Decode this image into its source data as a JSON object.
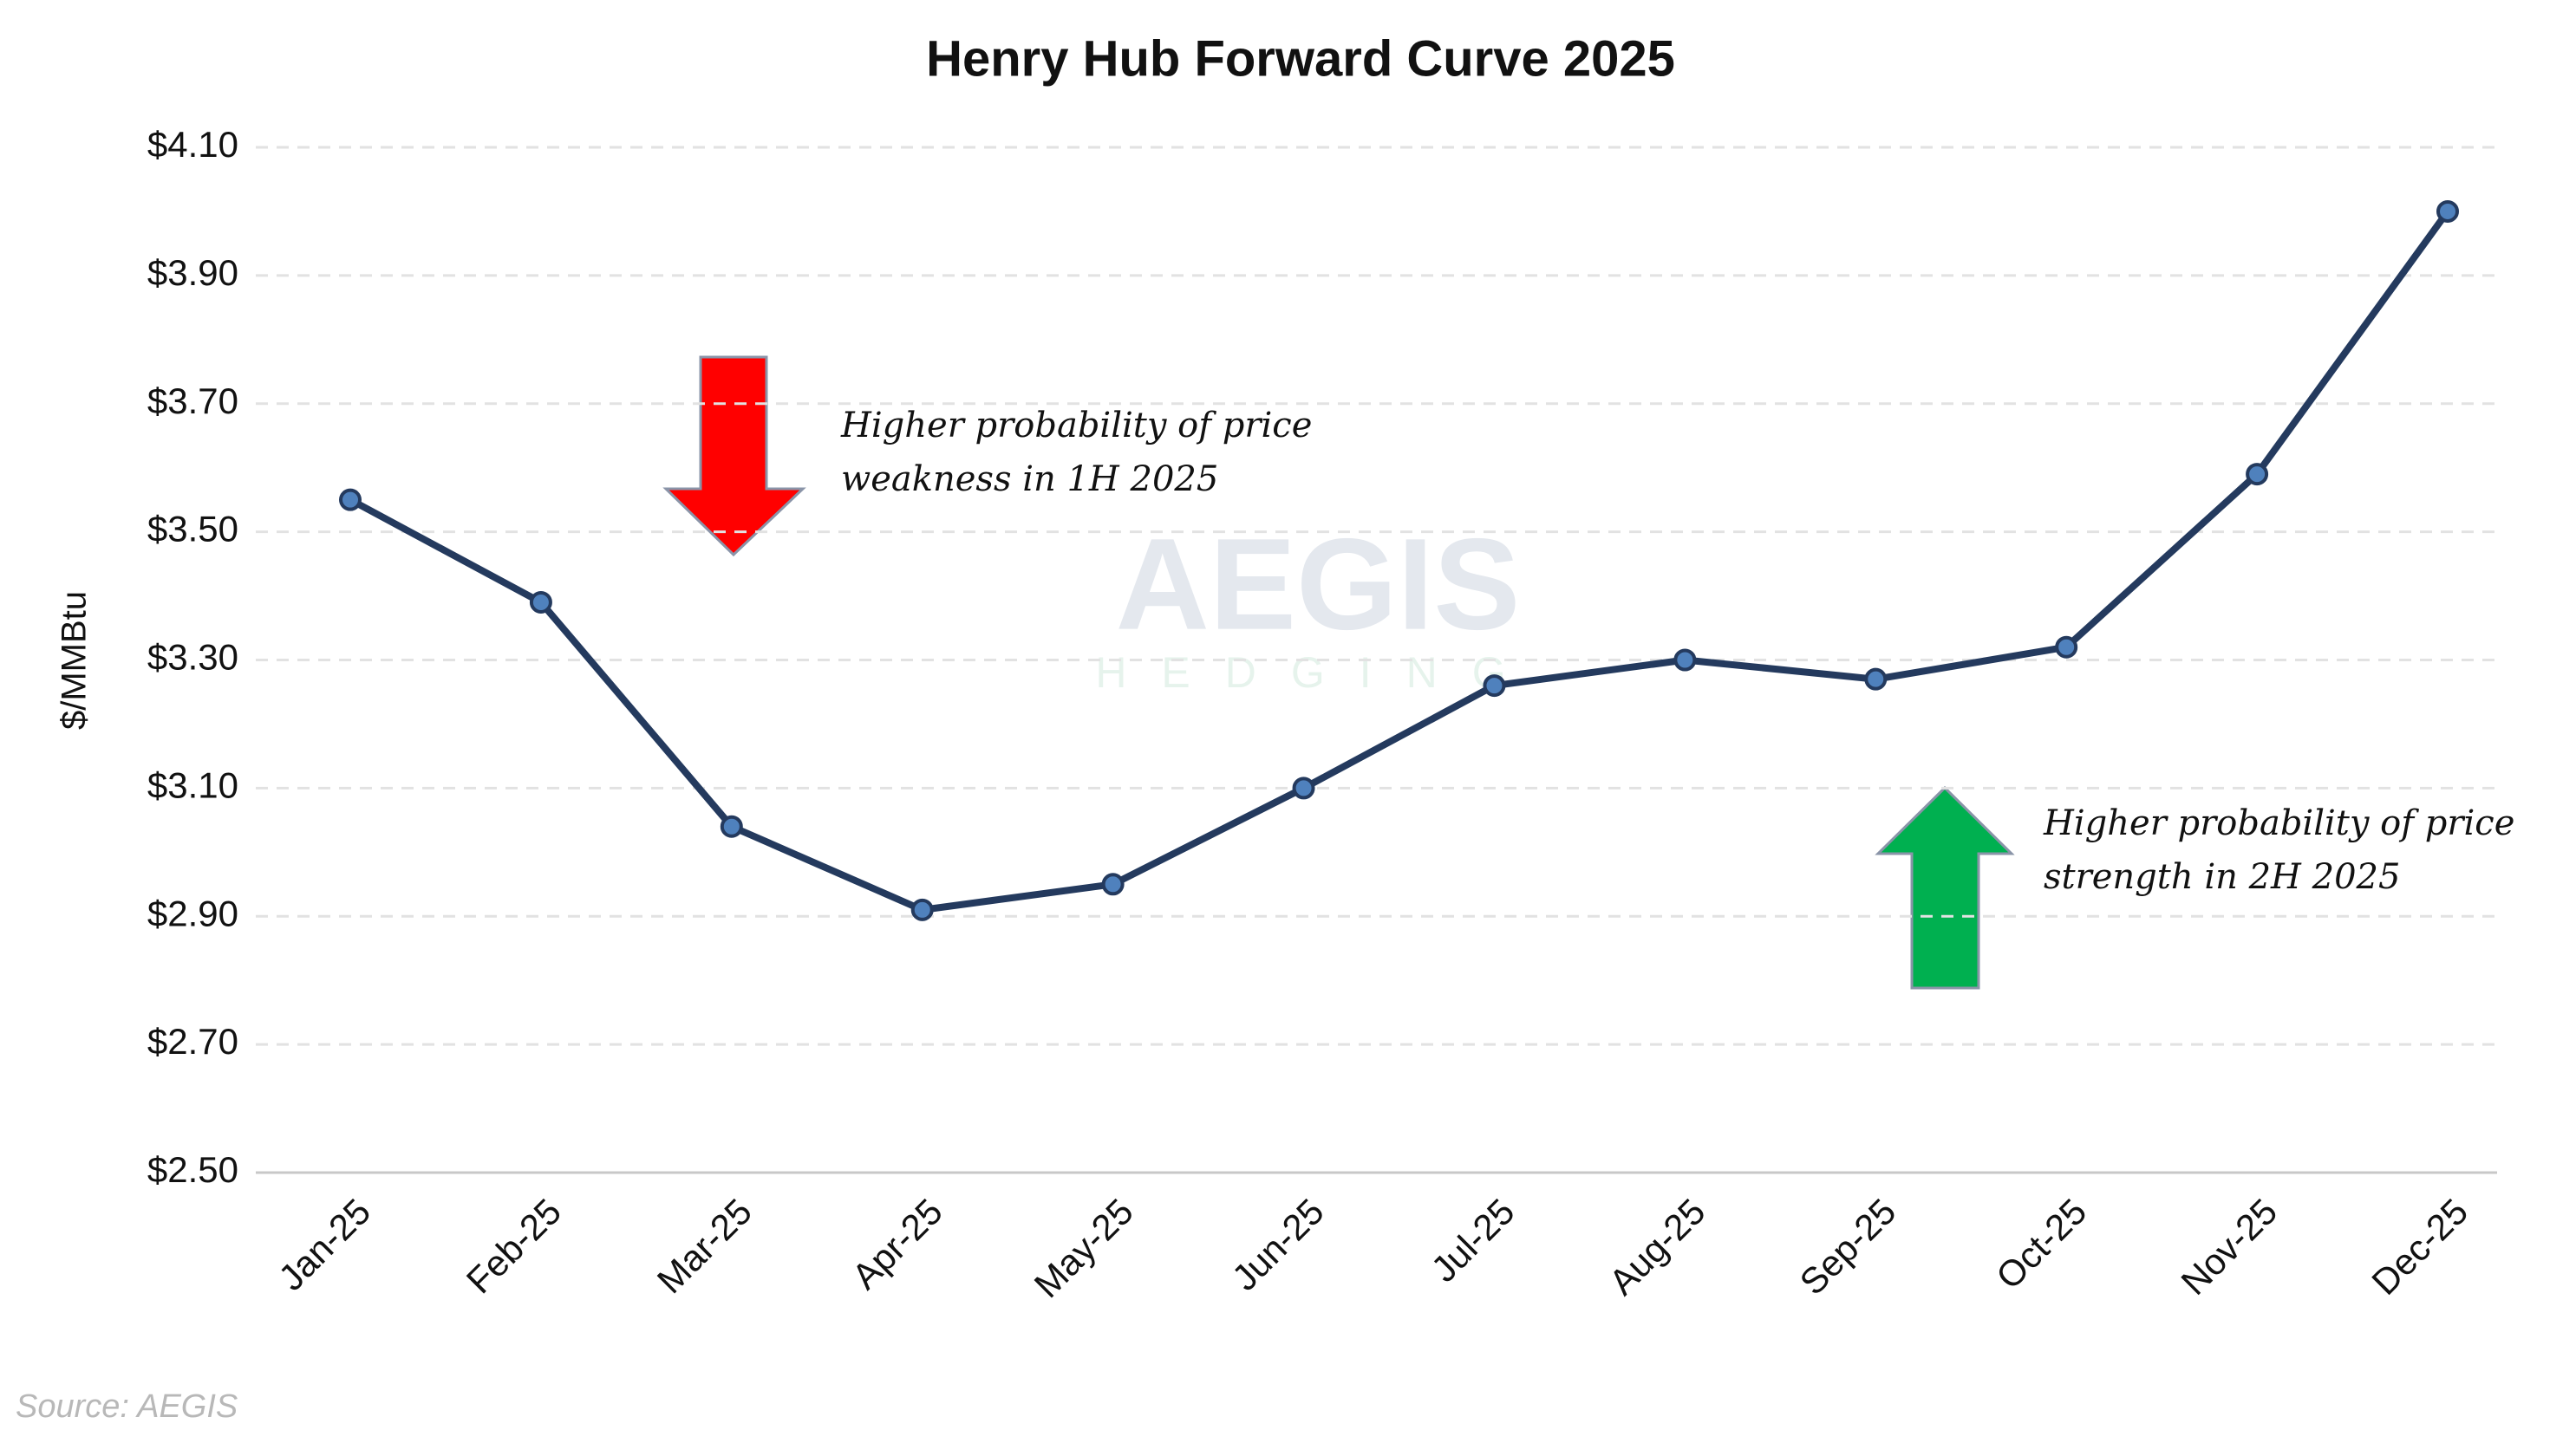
{
  "chart_data": {
    "type": "line",
    "title": "Henry Hub Forward Curve 2025",
    "y_label": "$/MMBtu",
    "categories": [
      "Jan-25",
      "Feb-25",
      "Mar-25",
      "Apr-25",
      "May-25",
      "Jun-25",
      "Jul-25",
      "Aug-25",
      "Sep-25",
      "Oct-25",
      "Nov-25",
      "Dec-25"
    ],
    "values": [
      3.55,
      3.39,
      3.04,
      2.91,
      2.95,
      3.1,
      3.26,
      3.3,
      3.27,
      3.32,
      3.59,
      4.0
    ],
    "color": "#243a5e",
    "marker_color": "#4f81bd",
    "ylim": [
      2.5,
      4.1
    ],
    "yticks": [
      {
        "value": 2.5,
        "label": "$2.50"
      },
      {
        "value": 2.7,
        "label": "$2.70"
      },
      {
        "value": 2.9,
        "label": "$2.90"
      },
      {
        "value": 3.1,
        "label": "$3.10"
      },
      {
        "value": 3.3,
        "label": "$3.30"
      },
      {
        "value": 3.5,
        "label": "$3.50"
      },
      {
        "value": 3.7,
        "label": "$3.70"
      },
      {
        "value": 3.9,
        "label": "$3.90"
      },
      {
        "value": 4.1,
        "label": "$4.10"
      }
    ],
    "grid": true,
    "annotations": [
      [
        "Higher probability of price",
        "weakness in 1H 2025"
      ],
      [
        "Higher probability of price",
        "strength in 2H 2025"
      ]
    ],
    "watermark": [
      "AEGIS",
      "HEDGING"
    ],
    "source": "Source: AEGIS"
  }
}
